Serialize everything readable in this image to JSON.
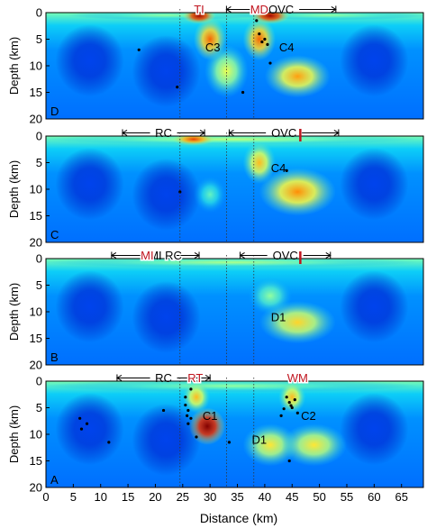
{
  "chart_data": {
    "type": "heatmap",
    "xlabel": "Distance (km)",
    "ylabel": "Depth (km)",
    "xlim": [
      0,
      69
    ],
    "ylim": [
      20,
      0
    ],
    "x_ticks": [
      0,
      5,
      10,
      15,
      20,
      25,
      30,
      35,
      40,
      45,
      50,
      55,
      60,
      65
    ],
    "y_ticks": [
      0,
      5,
      10,
      15,
      20
    ],
    "colormap": [
      "#00008f",
      "#0050ff",
      "#00c8ff",
      "#80ffb0",
      "#ffff40",
      "#ff8000",
      "#e01000",
      "#800000"
    ],
    "reference_lines_x": [
      24.5,
      33,
      38
    ],
    "panels": [
      {
        "id": "D",
        "anomalies": [
          {
            "x": 22,
            "z": 0.5,
            "rx": 18,
            "rz": 0.9,
            "v": 0.45
          },
          {
            "x": 52,
            "z": 0.5,
            "rx": 18,
            "rz": 0.9,
            "v": 0.45
          },
          {
            "x": 28,
            "z": 0.6,
            "rx": 3,
            "rz": 1.5,
            "v": 0.95
          },
          {
            "x": 41,
            "z": 0.6,
            "rx": 3.5,
            "rz": 1.5,
            "v": 0.95
          },
          {
            "x": 30,
            "z": 5,
            "rx": 3,
            "rz": 4,
            "v": 0.75
          },
          {
            "x": 39,
            "z": 5,
            "rx": 3,
            "rz": 4,
            "v": 0.75
          },
          {
            "x": 33,
            "z": 11,
            "rx": 4,
            "rz": 5,
            "v": 0.55
          },
          {
            "x": 46,
            "z": 12,
            "rx": 6,
            "rz": 4,
            "v": 0.68
          }
        ],
        "seismicity": [
          [
            24,
            14
          ],
          [
            38.5,
            1.5
          ],
          [
            39,
            4
          ],
          [
            39.5,
            5.5
          ],
          [
            40,
            5
          ],
          [
            40.5,
            6
          ],
          [
            41,
            9.5
          ],
          [
            17,
            7
          ],
          [
            36,
            15
          ]
        ],
        "labels": [
          {
            "text": "TI",
            "x": 28,
            "z": -0.6,
            "color": "#c0141e"
          },
          {
            "text": "MD",
            "x": 39,
            "z": -0.6,
            "color": "#c0141e"
          },
          {
            "text": "C3",
            "x": 30.5,
            "z": 6.5,
            "color": "#000000"
          },
          {
            "text": "C4",
            "x": 44,
            "z": 6.5,
            "color": "#000000"
          }
        ],
        "spans": [
          {
            "text": "OVC",
            "x1": 33,
            "x2": 53,
            "z": -0.6
          }
        ],
        "red_ticks": [],
        "panel_letter": "D"
      },
      {
        "id": "C",
        "anomalies": [
          {
            "x": 34,
            "z": 0.6,
            "rx": 34,
            "rz": 1.0,
            "v": 0.5
          },
          {
            "x": 27,
            "z": 0.6,
            "rx": 4,
            "rz": 1.2,
            "v": 0.8
          },
          {
            "x": 39,
            "z": 5,
            "rx": 3,
            "rz": 4,
            "v": 0.65
          },
          {
            "x": 46,
            "z": 10.5,
            "rx": 7,
            "rz": 4.5,
            "v": 0.7
          },
          {
            "x": 30,
            "z": 11,
            "rx": 3,
            "rz": 3.5,
            "v": 0.4
          }
        ],
        "seismicity": [
          [
            24.5,
            10.5
          ],
          [
            44,
            6.5
          ]
        ],
        "labels": [
          {
            "text": "C4",
            "x": 42.5,
            "z": 6,
            "color": "#000000"
          }
        ],
        "spans": [
          {
            "text": "RC",
            "x1": 14,
            "x2": 29,
            "z": -0.6
          },
          {
            "text": "OVC",
            "x1": 33.5,
            "x2": 53.5,
            "z": -0.6
          }
        ],
        "red_ticks": [
          46.5
        ],
        "panel_letter": "C"
      },
      {
        "id": "B",
        "anomalies": [
          {
            "x": 34,
            "z": 0.7,
            "rx": 34,
            "rz": 1.0,
            "v": 0.48
          },
          {
            "x": 41,
            "z": 7,
            "rx": 4,
            "rz": 3.5,
            "v": 0.45
          },
          {
            "x": 46,
            "z": 12,
            "rx": 7,
            "rz": 4,
            "v": 0.62
          }
        ],
        "seismicity": [],
        "labels": [
          {
            "text": "D1",
            "x": 42.5,
            "z": 11,
            "color": "#000000"
          }
        ],
        "spans": [
          {
            "text": "MI",
            "x1": 12,
            "x2": 28,
            "z": -0.6
          },
          {
            "text": "OVC",
            "x1": 35.5,
            "x2": 52,
            "z": -0.6
          }
        ],
        "inline_labels": [
          {
            "text": "MI",
            "x": 18.5,
            "z": -0.6,
            "color": "#c0141e"
          },
          {
            "text": "RC",
            "x": 23.3,
            "z": -0.6,
            "color": "#000000"
          }
        ],
        "red_ticks": [
          46.5
        ],
        "panel_letter": "B"
      },
      {
        "id": "A",
        "anomalies": [
          {
            "x": 34,
            "z": 0.9,
            "rx": 34,
            "rz": 1.2,
            "v": 0.45
          },
          {
            "x": 29.5,
            "z": 8.5,
            "rx": 3.3,
            "rz": 3.5,
            "v": 1.0
          },
          {
            "x": 27.5,
            "z": 3,
            "rx": 2.5,
            "rz": 3,
            "v": 0.65
          },
          {
            "x": 45,
            "z": 3,
            "rx": 2.5,
            "rz": 3,
            "v": 0.65
          },
          {
            "x": 41,
            "z": 12,
            "rx": 5,
            "rz": 4,
            "v": 0.6
          },
          {
            "x": 49,
            "z": 12,
            "rx": 6,
            "rz": 4,
            "v": 0.6
          }
        ],
        "seismicity": [
          [
            25.5,
            3
          ],
          [
            25.5,
            4.5
          ],
          [
            26,
            5.5
          ],
          [
            25.8,
            6.5
          ],
          [
            26.5,
            7
          ],
          [
            26,
            8
          ],
          [
            27.5,
            10.5
          ],
          [
            26.5,
            1.5
          ],
          [
            44,
            3
          ],
          [
            44.5,
            4
          ],
          [
            45,
            5
          ],
          [
            43.5,
            5.2
          ],
          [
            45.5,
            3.5
          ],
          [
            44.8,
            4.6
          ],
          [
            46,
            6
          ],
          [
            43,
            6.5
          ],
          [
            6.5,
            9
          ],
          [
            7.5,
            8
          ],
          [
            11.5,
            11.5
          ],
          [
            33.5,
            11.5
          ],
          [
            44.5,
            15
          ],
          [
            21.5,
            5.5
          ],
          [
            6.2,
            7
          ]
        ],
        "labels": [
          {
            "text": "RT",
            "x": 27.3,
            "z": -0.6,
            "color": "#c0141e"
          },
          {
            "text": "WM",
            "x": 46,
            "z": -0.6,
            "color": "#c0141e"
          },
          {
            "text": "C1",
            "x": 30,
            "z": 6.5,
            "color": "#000000"
          },
          {
            "text": "C2",
            "x": 48,
            "z": 6.5,
            "color": "#000000"
          },
          {
            "text": "D1",
            "x": 39,
            "z": 11,
            "color": "#000000"
          }
        ],
        "spans": [
          {
            "text": "RC",
            "x1": 13,
            "x2": 30,
            "z": -0.6
          }
        ],
        "red_ticks": [],
        "panel_letter": "A"
      }
    ]
  }
}
